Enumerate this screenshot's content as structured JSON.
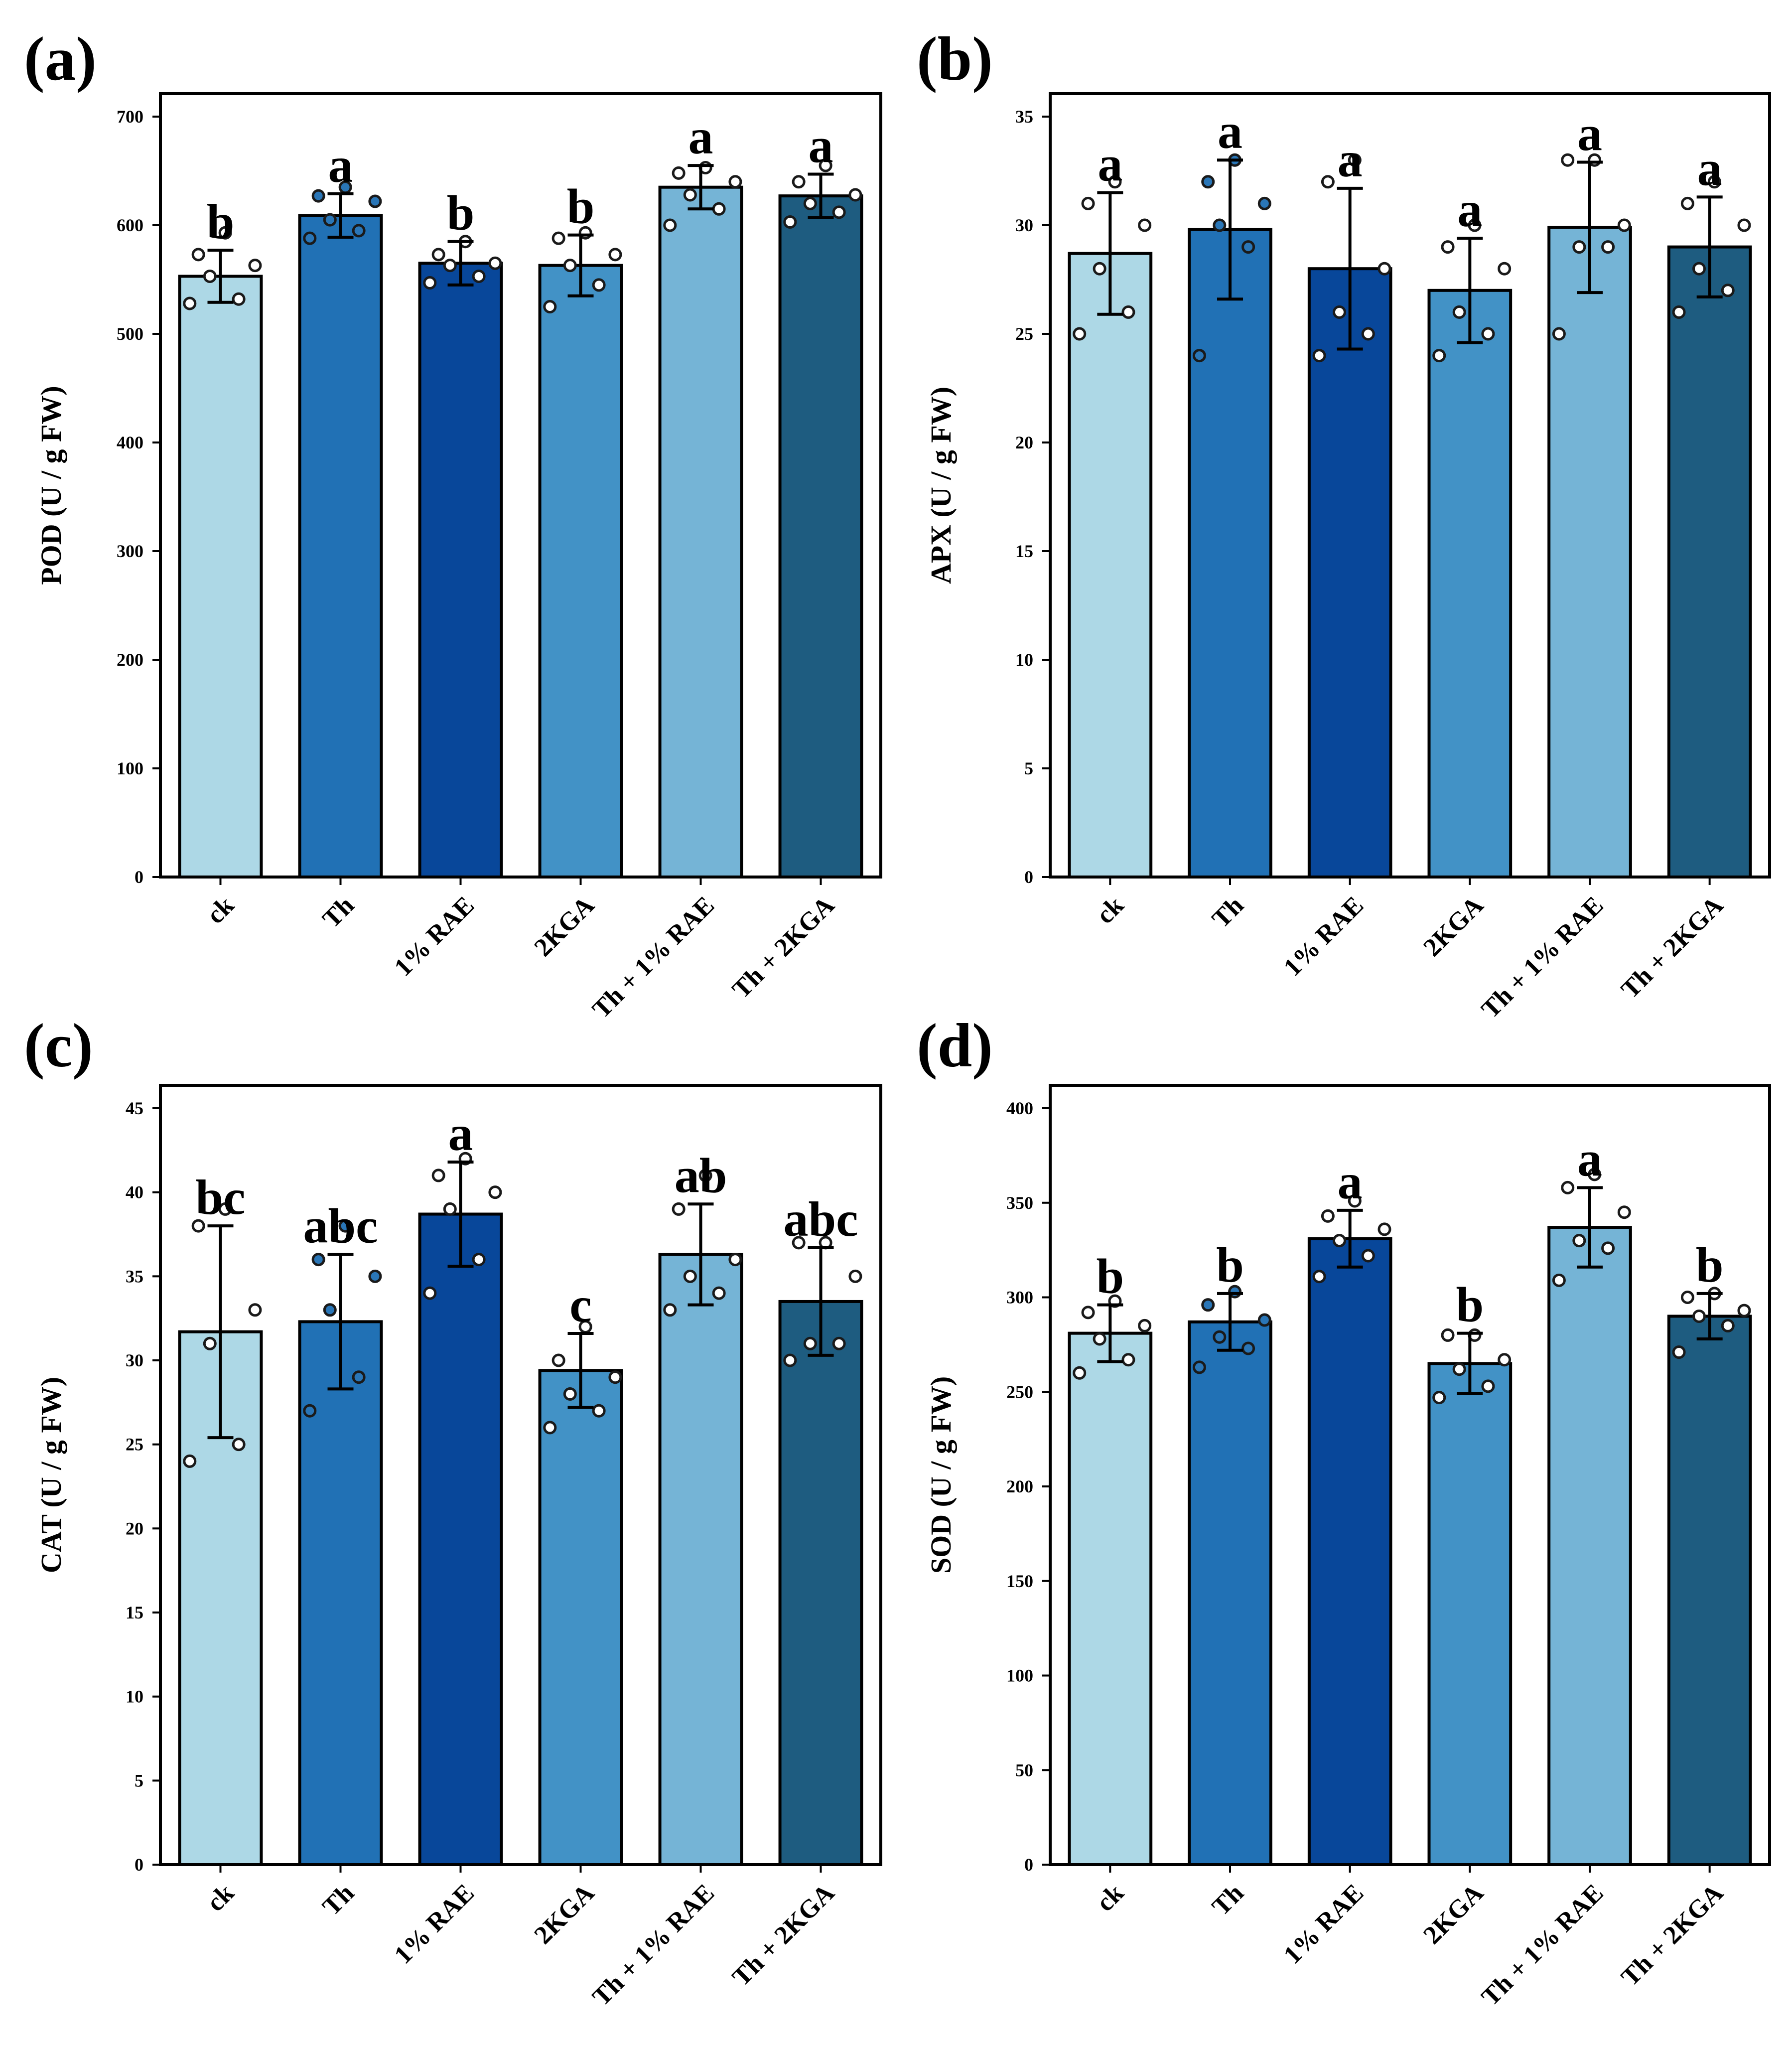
{
  "figure": {
    "panels": [
      "a",
      "b",
      "c",
      "d"
    ]
  },
  "chart_data": [
    {
      "panel": "(a)",
      "type": "bar",
      "categories": [
        "ck",
        "Th",
        "1% RAE",
        "2KGA",
        "Th + 1% RAE",
        "Th + 2KGA"
      ],
      "values": [
        553,
        609,
        565,
        563,
        635,
        627
      ],
      "error": [
        24,
        20,
        20,
        28,
        20,
        20
      ],
      "points": [
        [
          528,
          532,
          553,
          563,
          573,
          593
        ],
        [
          588,
          595,
          605,
          622,
          627,
          635
        ],
        [
          547,
          553,
          563,
          565,
          573,
          585
        ],
        [
          525,
          545,
          563,
          573,
          588,
          593
        ],
        [
          600,
          615,
          628,
          640,
          648,
          653
        ],
        [
          603,
          612,
          620,
          628,
          640,
          655
        ]
      ],
      "significance": [
        "b",
        "a",
        "b",
        "b",
        "a",
        "a"
      ],
      "ylabel": "POD (U / g FW)",
      "ylim": [
        0,
        700
      ],
      "yticks": [
        0,
        100,
        200,
        300,
        400,
        500,
        600,
        700
      ],
      "colors": [
        "#add8e6",
        "#2171b5",
        "#08479a",
        "#4292c6",
        "#75b4d6",
        "#1e5c80"
      ],
      "point_fill": [
        "#ffffff",
        "#2a76b7",
        "#ffffff",
        "#ffffff",
        "#ffffff",
        "#ffffff"
      ]
    },
    {
      "panel": "(b)",
      "type": "bar",
      "categories": [
        "ck",
        "Th",
        "1% RAE",
        "2KGA",
        "Th + 1% RAE",
        "Th + 2KGA"
      ],
      "values": [
        28.7,
        29.8,
        28.0,
        27.0,
        29.9,
        29.0
      ],
      "error": [
        2.8,
        3.2,
        3.7,
        2.4,
        3.0,
        2.3
      ],
      "points": [
        [
          25,
          26,
          28,
          30,
          31,
          32
        ],
        [
          24,
          29,
          30,
          31,
          32,
          33
        ],
        [
          24,
          25,
          26,
          28,
          32,
          33
        ],
        [
          24,
          25,
          26,
          28,
          29,
          30
        ],
        [
          25,
          29,
          29,
          30,
          33,
          33
        ],
        [
          26,
          27,
          28,
          30,
          31,
          32
        ]
      ],
      "significance": [
        "a",
        "a",
        "a",
        "a",
        "a",
        "a"
      ],
      "ylabel": "APX (U / g FW)",
      "ylim": [
        0,
        35
      ],
      "yticks": [
        0,
        5,
        10,
        15,
        20,
        25,
        30,
        35
      ],
      "colors": [
        "#add8e6",
        "#2171b5",
        "#08479a",
        "#4292c6",
        "#75b4d6",
        "#1e5c80"
      ],
      "point_fill": [
        "#ffffff",
        "#2a76b7",
        "#ffffff",
        "#ffffff",
        "#ffffff",
        "#ffffff"
      ]
    },
    {
      "panel": "(c)",
      "type": "bar",
      "categories": [
        "ck",
        "Th",
        "1% RAE",
        "2KGA",
        "Th + 1% RAE",
        "Th + 2KGA"
      ],
      "values": [
        31.7,
        32.3,
        38.7,
        29.4,
        36.3,
        33.5
      ],
      "error": [
        6.3,
        4.0,
        3.1,
        2.2,
        3.0,
        3.2
      ],
      "points": [
        [
          24,
          25,
          31,
          33,
          38,
          39
        ],
        [
          27,
          29,
          33,
          35,
          36,
          38
        ],
        [
          34,
          36,
          39,
          40,
          41,
          42
        ],
        [
          26,
          27,
          28,
          29,
          30,
          32
        ],
        [
          33,
          34,
          35,
          36,
          39,
          41
        ],
        [
          30,
          31,
          31,
          35,
          37,
          37
        ]
      ],
      "significance": [
        "bc",
        "abc",
        "a",
        "c",
        "ab",
        "abc"
      ],
      "ylabel": "CAT (U / g FW)",
      "ylim": [
        0,
        45
      ],
      "yticks": [
        0,
        5,
        10,
        15,
        20,
        25,
        30,
        35,
        40,
        45
      ],
      "colors": [
        "#add8e6",
        "#2171b5",
        "#08479a",
        "#4292c6",
        "#75b4d6",
        "#1e5c80"
      ],
      "point_fill": [
        "#ffffff",
        "#2a76b7",
        "#ffffff",
        "#ffffff",
        "#ffffff",
        "#ffffff"
      ]
    },
    {
      "panel": "(d)",
      "type": "bar",
      "categories": [
        "ck",
        "Th",
        "1% RAE",
        "2KGA",
        "Th + 1% RAE",
        "Th + 2KGA"
      ],
      "values": [
        281,
        287,
        331,
        265,
        337,
        290
      ],
      "error": [
        15,
        15,
        15,
        16,
        21,
        12
      ],
      "points": [
        [
          260,
          267,
          278,
          285,
          292,
          298
        ],
        [
          263,
          273,
          279,
          288,
          296,
          303
        ],
        [
          311,
          322,
          330,
          336,
          343,
          351
        ],
        [
          247,
          253,
          262,
          267,
          280,
          280
        ],
        [
          309,
          326,
          330,
          345,
          358,
          365
        ],
        [
          271,
          285,
          290,
          293,
          300,
          302
        ]
      ],
      "significance": [
        "b",
        "b",
        "a",
        "b",
        "a",
        "b"
      ],
      "ylabel": "SOD (U / g FW)",
      "ylim": [
        0,
        400
      ],
      "yticks": [
        0,
        50,
        100,
        150,
        200,
        250,
        300,
        350,
        400
      ],
      "colors": [
        "#add8e6",
        "#2171b5",
        "#08479a",
        "#4292c6",
        "#75b4d6",
        "#1e5c80"
      ],
      "point_fill": [
        "#ffffff",
        "#2a76b7",
        "#ffffff",
        "#ffffff",
        "#ffffff",
        "#ffffff"
      ]
    }
  ]
}
